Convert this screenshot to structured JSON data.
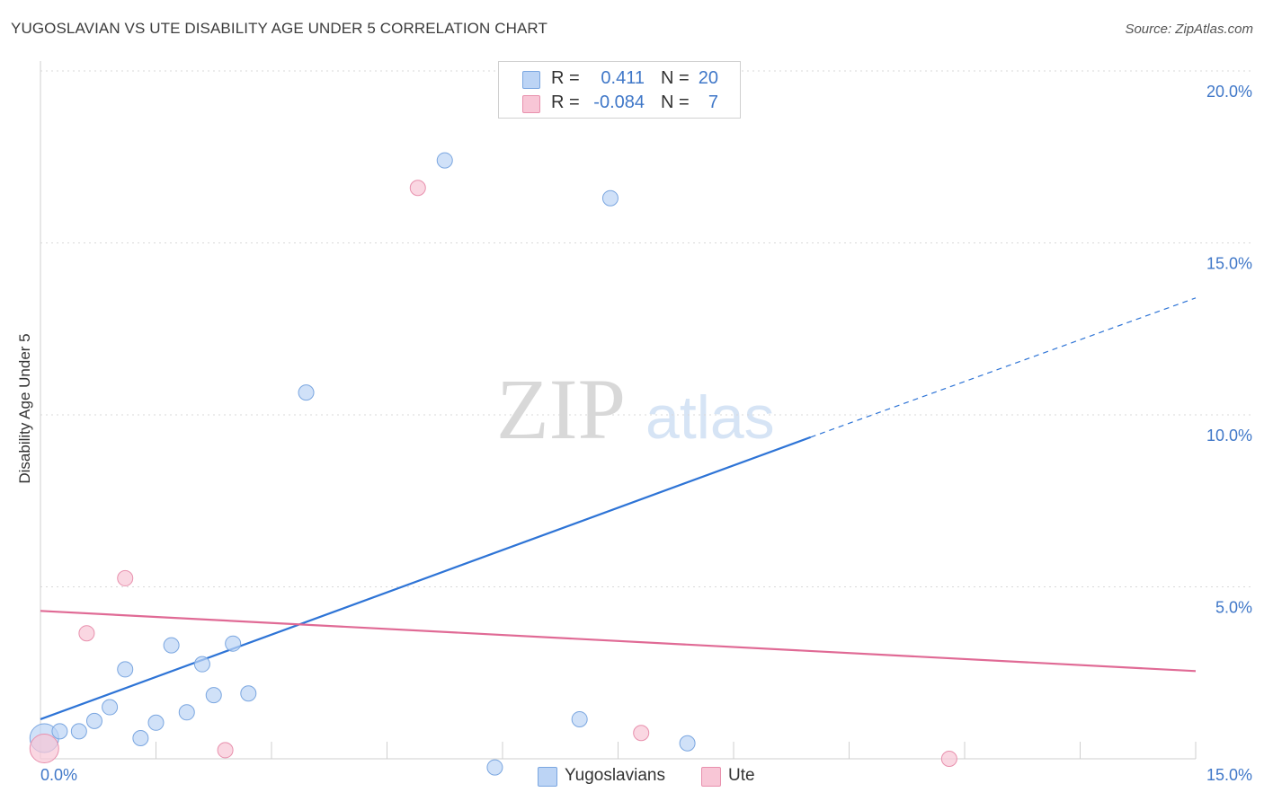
{
  "title": "YUGOSLAVIAN VS UTE DISABILITY AGE UNDER 5 CORRELATION CHART",
  "source": "Source: ZipAtlas.com",
  "legend": {
    "rows": [
      {
        "r_label": "R =",
        "r_value": "0.411",
        "n_label": "N =",
        "n_value": "20",
        "color": "#bcd4f5",
        "border": "#7aa6e0"
      },
      {
        "r_label": "R =",
        "r_value": "-0.084",
        "n_label": "N =",
        "n_value": "7",
        "color": "#f8c6d6",
        "border": "#e890ad"
      }
    ]
  },
  "bottom_legend": [
    {
      "label": "Yugoslavians",
      "color": "#bcd4f5",
      "border": "#7aa6e0"
    },
    {
      "label": "Ute",
      "color": "#f8c6d6",
      "border": "#e890ad"
    }
  ],
  "watermark": {
    "zip": "ZIP",
    "atlas": "atlas"
  },
  "chart_data": {
    "type": "scatter",
    "title": "YUGOSLAVIAN VS UTE DISABILITY AGE UNDER 5 CORRELATION CHART",
    "xlabel": "",
    "ylabel": "Disability Age Under 5",
    "xlim": [
      0,
      15
    ],
    "ylim": [
      0,
      20
    ],
    "x_tick_labels": [
      "0.0%",
      "15.0%"
    ],
    "y_ticks": [
      5,
      10,
      15,
      20
    ],
    "y_tick_labels": [
      "5.0%",
      "10.0%",
      "15.0%",
      "20.0%"
    ],
    "grid": true,
    "series": [
      {
        "name": "Yugoslavians",
        "color": "#7aa6e0",
        "fill": "#bcd4f5",
        "points": [
          [
            0.05,
            0.6,
            "large"
          ],
          [
            0.25,
            0.8
          ],
          [
            0.5,
            0.8
          ],
          [
            0.7,
            1.1
          ],
          [
            0.9,
            1.5
          ],
          [
            1.1,
            2.6
          ],
          [
            1.3,
            0.6
          ],
          [
            1.5,
            1.05
          ],
          [
            1.7,
            3.3
          ],
          [
            1.9,
            1.35
          ],
          [
            2.1,
            2.75
          ],
          [
            2.25,
            1.85
          ],
          [
            2.5,
            3.35
          ],
          [
            2.7,
            1.9
          ],
          [
            3.45,
            10.65
          ],
          [
            5.25,
            17.4
          ],
          [
            5.9,
            -0.25
          ],
          [
            7.0,
            1.15
          ],
          [
            7.4,
            16.3
          ],
          [
            8.4,
            0.45
          ]
        ],
        "trend": {
          "x0": 0.0,
          "y0": 1.15,
          "x1": 10.0,
          "y1": 9.35,
          "x_dash_end": 15.0,
          "y_dash_end": 13.4,
          "color": "#2e74d6"
        }
      },
      {
        "name": "Ute",
        "color": "#e890ad",
        "fill": "#f8c6d6",
        "points": [
          [
            0.05,
            0.3,
            "large"
          ],
          [
            0.6,
            3.65
          ],
          [
            1.1,
            5.25
          ],
          [
            2.4,
            0.25
          ],
          [
            4.9,
            16.6
          ],
          [
            7.8,
            0.75
          ],
          [
            11.8,
            0.0
          ]
        ],
        "trend": {
          "x0": 0.0,
          "y0": 4.3,
          "x1": 15.0,
          "y1": 2.55,
          "color": "#e06a95"
        }
      }
    ]
  }
}
